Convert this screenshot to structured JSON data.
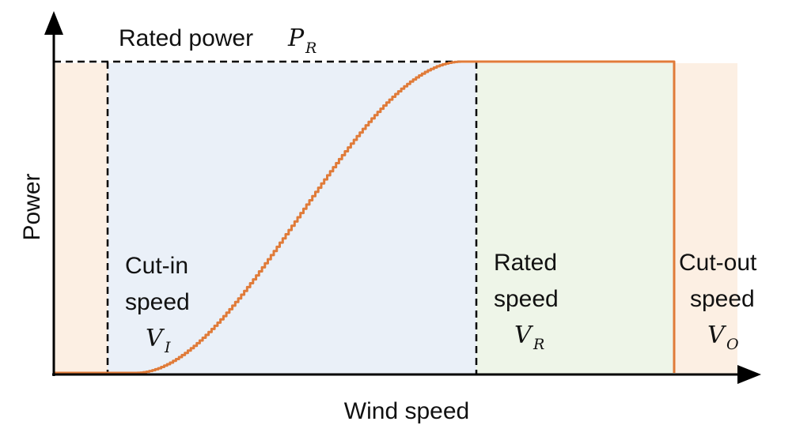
{
  "labels": {
    "rated_power": "Rated power",
    "rated_power_symbol": "P",
    "rated_power_sub": "R",
    "y_axis": "Power",
    "x_axis": "Wind speed",
    "cut_in_line1": "Cut-in",
    "cut_in_line2": "speed",
    "cut_in_symbol": "V",
    "cut_in_sub": "I",
    "rated_line1": "Rated",
    "rated_line2": "speed",
    "rated_symbol": "V",
    "rated_sub": "R",
    "cut_out_line1": "Cut-out",
    "cut_out_line2": "speed",
    "cut_out_symbol": "V",
    "cut_out_sub": "O"
  },
  "colors": {
    "outer_region": "#fcefe3",
    "cut_in_region": "#eaf0f8",
    "rated_region": "#eef5e8",
    "curve": "#e07b39",
    "axis": "#000000",
    "dashed": "#000000"
  }
}
